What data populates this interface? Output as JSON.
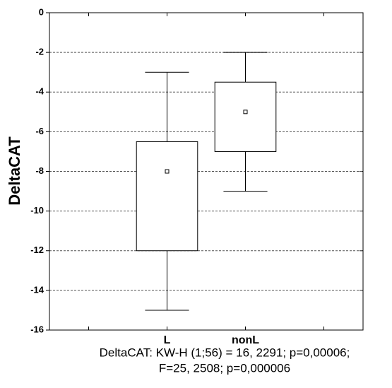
{
  "chart_data": {
    "type": "box",
    "y_label": "DeltaCAT",
    "categories": [
      "L",
      "nonL"
    ],
    "min": [
      -15,
      -9
    ],
    "q1": [
      -12,
      -7
    ],
    "median": [
      -8,
      -5
    ],
    "q3": [
      -6.5,
      -3.5
    ],
    "max": [
      -3,
      -2
    ],
    "color": "#ffffff",
    "ylim": [
      -16,
      0
    ],
    "yticks": [
      0,
      -2,
      -4,
      -6,
      -8,
      -10,
      -12,
      -14,
      -16
    ],
    "grid": true,
    "caption": [
      "DeltaCAT: KW-H (1;56) = 16, 2291; p=0,00006;",
      "F=25, 2508; p=0,000006"
    ]
  }
}
